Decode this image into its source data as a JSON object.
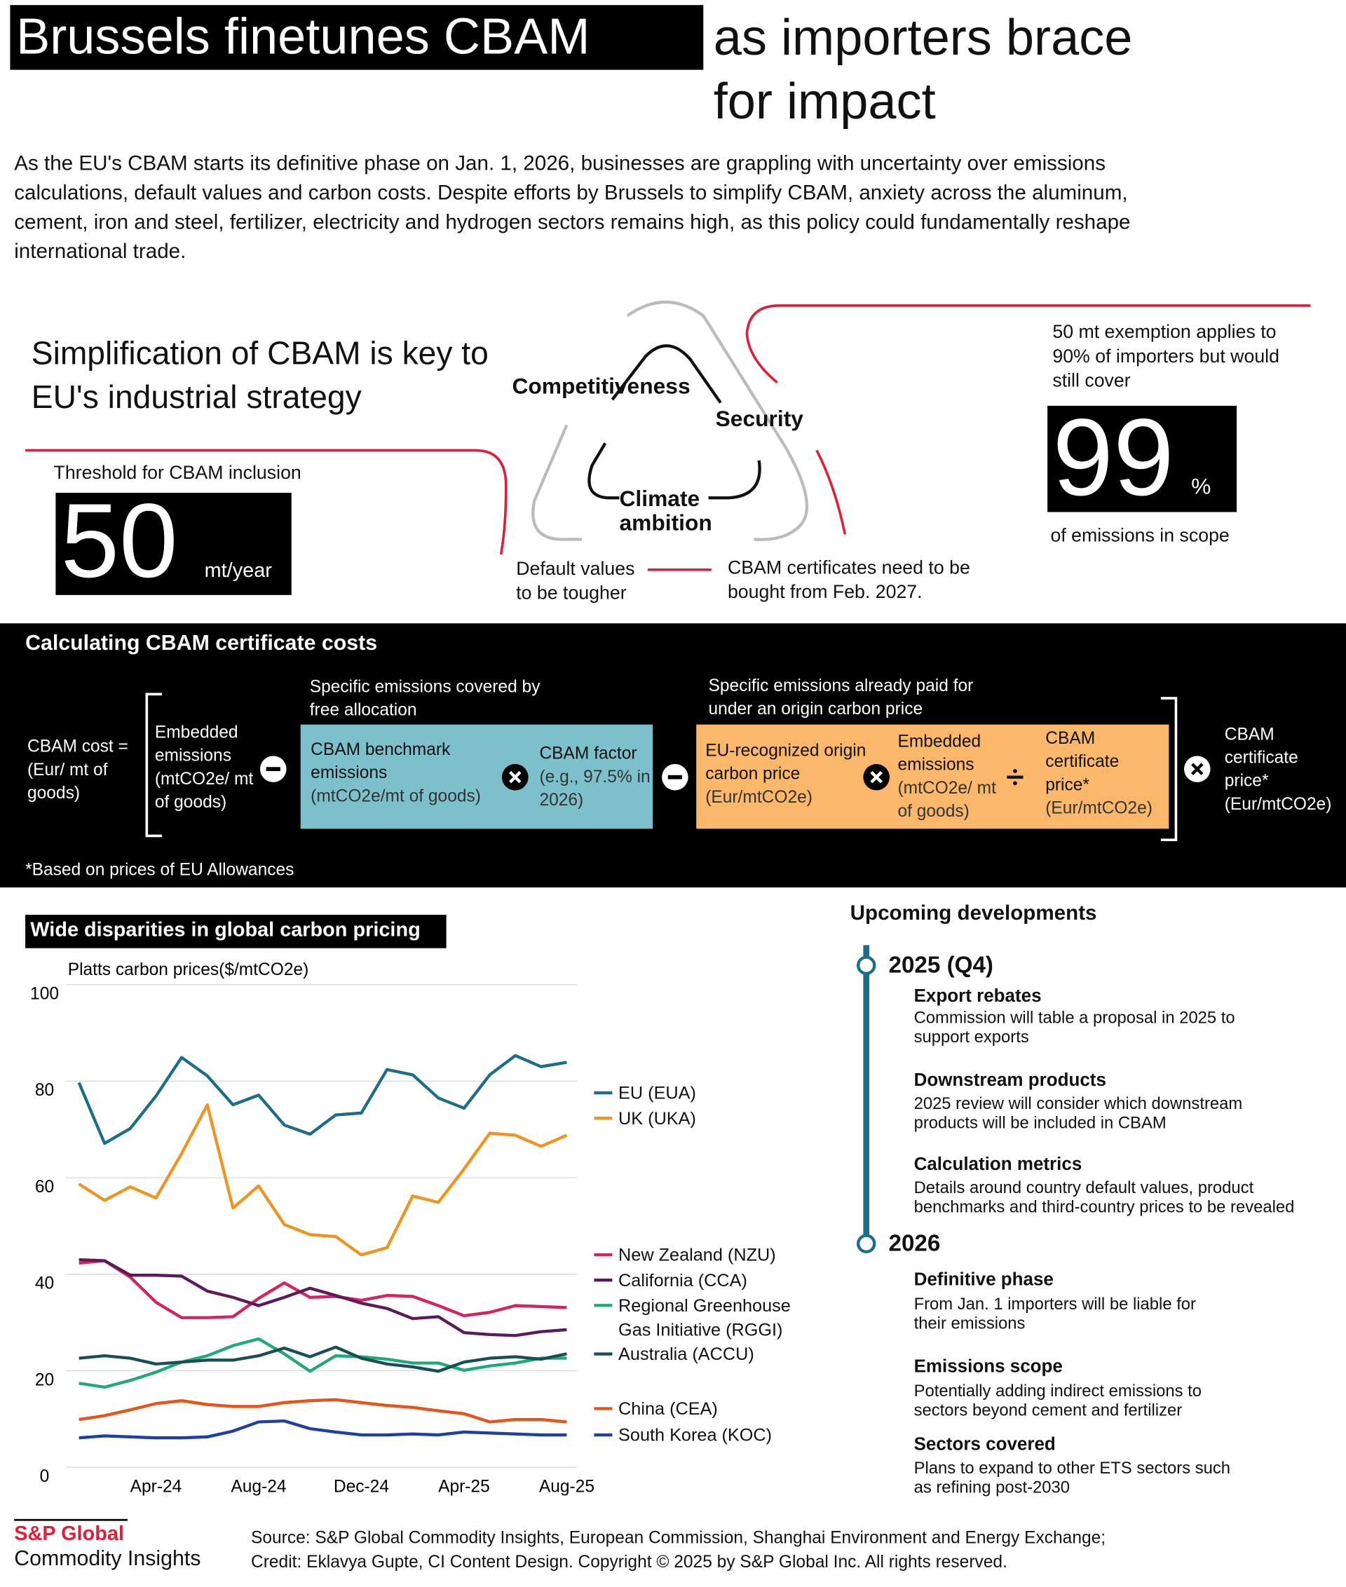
{
  "header": {
    "title_highlight": "Brussels finetunes CBAM",
    "title_rest": "as importers brace for impact",
    "intro": "As the EU's CBAM starts its definitive phase on Jan. 1, 2026, businesses are grappling with uncertainty over emissions calculations, default values and carbon costs. Despite efforts by Brussels to simplify CBAM, anxiety across the aluminum, cement, iron and steel, fertilizer, electricity and hydrogen sectors remains high, as this policy could fundamentally reshape international trade."
  },
  "simplification": {
    "heading": "Simplification of CBAM is key to EU's industrial strategy",
    "threshold_label": "Threshold for CBAM inclusion",
    "threshold_value": 50,
    "threshold_unit": "mt/year",
    "pillars": [
      "Competitiveness",
      "Security",
      "Climate ambition"
    ],
    "note_default": "Default values to be tougher",
    "note_certificates": "CBAM certificates need to be bought from Feb. 2027.",
    "exemption_text": "50 mt exemption applies to 90% of importers but would still cover",
    "scope_value": 99,
    "scope_unit": "%",
    "scope_label": "of emissions in scope"
  },
  "formula": {
    "title": "Calculating CBAM certificate costs",
    "cost": "CBAM cost = (Eur/ mt of goods)",
    "embedded": "Embedded emissions (mtCO2e/ mt of goods)",
    "free_label": "Specific emissions covered by free allocation",
    "benchmark_title": "CBAM benchmark emissions",
    "benchmark_unit": "(mtCO2e/mt of goods)",
    "factor_title": "CBAM factor",
    "factor_note": "(e.g., 97.5% in 2026)",
    "origin_label": "Specific emissions already paid for under an origin carbon price",
    "origin_title": "EU-recognized origin carbon price",
    "origin_unit": "(Eur/mtCO2e)",
    "embedded2_title": "Embedded emissions",
    "embedded2_unit": "(mtCO2e/ mt of goods)",
    "cert_title": "CBAM certificate price*",
    "cert_unit": "(Eur/mtCO2e)",
    "final_title": "CBAM certificate price*",
    "final_unit": "(Eur/mtCO2e)",
    "footnote": "*Based on prices of EU Allowances"
  },
  "chart_data": {
    "type": "line",
    "title": "Wide disparities in global carbon pricing",
    "y_label": "Platts carbon prices($/mtCO2e)",
    "categories": [
      null,
      null,
      null,
      "Apr-24",
      null,
      null,
      null,
      "Aug-24",
      null,
      null,
      null,
      "Dec-24",
      null,
      null,
      null,
      "Apr-25",
      null,
      null,
      null,
      "Aug-25"
    ],
    "ylim": [
      0,
      100
    ],
    "yticks": [
      0,
      20,
      40,
      60,
      80,
      100
    ],
    "grid": true,
    "series": [
      {
        "name": "EU (EUA)",
        "color": "#1b6e8a",
        "values": [
          79.7,
          67.1,
          70.2,
          76.9,
          84.9,
          81.1,
          75.1,
          77.1,
          70.9,
          69.0,
          73.0,
          73.4,
          82.4,
          81.3,
          76.5,
          74.4,
          81.3,
          85.3,
          83.0,
          83.9
        ]
      },
      {
        "name": "UK (UKA)",
        "color": "#f0941f",
        "values": [
          58.7,
          55.3,
          58.1,
          55.8,
          65.0,
          75.1,
          53.7,
          58.3,
          50.3,
          48.2,
          47.8,
          44.0,
          45.5,
          56.2,
          54.9,
          61.8,
          69.2,
          68.8,
          66.5,
          68.8
        ]
      },
      {
        "name": "New Zealand (NZU)",
        "color": "#d6225d",
        "values": [
          42.3,
          42.8,
          39.4,
          34.2,
          31.0,
          31.0,
          31.2,
          35.0,
          38.2,
          35.2,
          35.4,
          34.6,
          35.6,
          35.4,
          33.5,
          31.4,
          32.1,
          33.5,
          33.3,
          33.1
        ]
      },
      {
        "name": "California (CCA)",
        "color": "#5c1a5a",
        "values": [
          43.0,
          42.8,
          39.8,
          39.8,
          39.6,
          36.5,
          35.2,
          33.5,
          35.2,
          37.1,
          35.6,
          34.0,
          32.9,
          30.8,
          31.2,
          27.9,
          27.5,
          27.3,
          28.1,
          28.5
        ]
      },
      {
        "name": "Regional Greenhouse Gas Initiative (RGGI)",
        "color": "#1fa97a",
        "values": [
          17.4,
          16.6,
          18.0,
          19.7,
          21.8,
          23.1,
          25.2,
          26.6,
          23.5,
          19.9,
          23.1,
          22.9,
          22.4,
          21.6,
          21.6,
          20.1,
          21.0,
          21.6,
          22.6,
          22.6
        ]
      },
      {
        "name": "Australia (ACCU)",
        "color": "#174f55",
        "values": [
          22.6,
          23.1,
          22.6,
          21.4,
          21.8,
          22.2,
          22.2,
          23.1,
          24.7,
          22.9,
          24.9,
          22.6,
          21.4,
          20.8,
          19.9,
          21.8,
          22.6,
          22.9,
          22.4,
          23.5
        ]
      },
      {
        "name": "China (CEA)",
        "color": "#e8531a",
        "values": [
          9.9,
          10.7,
          11.9,
          13.2,
          13.8,
          13.0,
          12.6,
          12.6,
          13.4,
          13.8,
          14.0,
          13.4,
          12.8,
          12.4,
          11.7,
          11.1,
          9.4,
          9.9,
          9.9,
          9.4
        ]
      },
      {
        "name": "South Korea (KOC)",
        "color": "#1f3fa5",
        "values": [
          6.1,
          6.5,
          6.3,
          6.1,
          6.1,
          6.3,
          7.5,
          9.4,
          9.6,
          8.0,
          7.3,
          6.7,
          6.7,
          6.9,
          6.7,
          7.3,
          7.1,
          6.9,
          6.7,
          6.7
        ]
      }
    ]
  },
  "timeline": {
    "title": "Upcoming developments",
    "groups": [
      {
        "year": "2025 (Q4)",
        "items": [
          {
            "title": "Export rebates",
            "text": "Commission will table a proposal in 2025 to support exports"
          },
          {
            "title": "Downstream products",
            "text": "2025 review will consider which downstream products will be included in CBAM"
          },
          {
            "title": "Calculation metrics",
            "text": "Details around country default values, product benchmarks and third-country prices to be revealed"
          }
        ]
      },
      {
        "year": "2026",
        "items": [
          {
            "title": "Definitive phase",
            "text": "From Jan. 1 importers will be liable for their emissions"
          },
          {
            "title": "Emissions scope",
            "text": "Potentially adding indirect emissions to sectors beyond cement and fertilizer"
          },
          {
            "title": "Sectors covered",
            "text": "Plans to expand to other ETS sectors such as refining post-2030"
          }
        ]
      }
    ]
  },
  "footer": {
    "brand": "S&P Global",
    "brand_sub": "Commodity Insights",
    "source": "Source: S&P Global Commodity Insights, European Commission, Shanghai Environment and Energy Exchange;",
    "credit": "Credit: Eklavya Gupte, CI Content Design.  Copyright © 2025 by S&P Global Inc.  All rights reserved."
  }
}
